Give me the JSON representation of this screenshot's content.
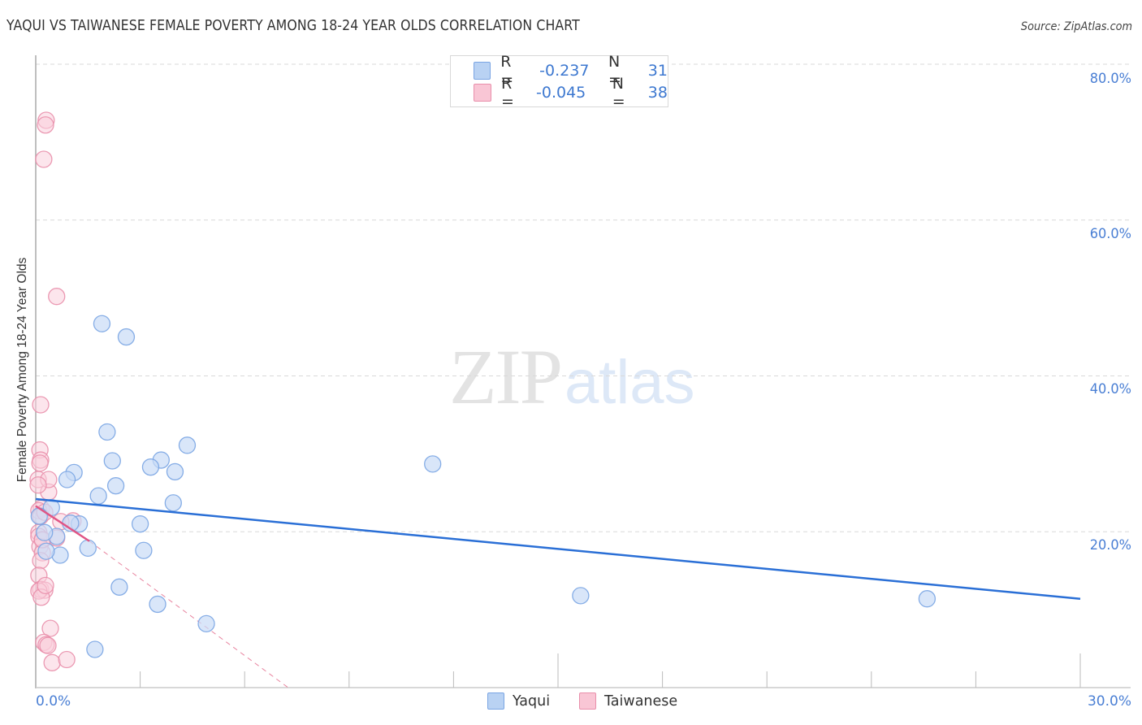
{
  "header": {
    "title": "YAQUI VS TAIWANESE FEMALE POVERTY AMONG 18-24 YEAR OLDS CORRELATION CHART",
    "source": "Source: ZipAtlas.com"
  },
  "watermark": {
    "zip": "ZIP",
    "atlas": "atlas"
  },
  "legend": {
    "rows": [
      {
        "r_label": "R =",
        "r_value": "-0.237",
        "n_label": "N =",
        "n_value": "31",
        "color": "#b9d2f3",
        "border": "#7aa5e3"
      },
      {
        "r_label": "R =",
        "r_value": "-0.045",
        "n_label": "N =",
        "n_value": "38",
        "color": "#f9c6d5",
        "border": "#e98fab"
      }
    ]
  },
  "bottom_legend": [
    {
      "label": "Yaqui",
      "color": "#b9d2f3",
      "border": "#7aa5e3"
    },
    {
      "label": "Taiwanese",
      "color": "#f9c6d5",
      "border": "#e98fab"
    }
  ],
  "axes": {
    "ylabel": "Female Poverty Among 18-24 Year Olds",
    "y_ticks": [
      "80.0%",
      "60.0%",
      "40.0%",
      "20.0%"
    ],
    "x_ticks": [
      "0.0%",
      "30.0%"
    ]
  },
  "chart_data": {
    "type": "scatter",
    "title": "YAQUI VS TAIWANESE FEMALE POVERTY AMONG 18-24 YEAR OLDS CORRELATION CHART",
    "xlabel": "",
    "ylabel": "Female Poverty Among 18-24 Year Olds",
    "xlim": [
      0,
      30
    ],
    "ylim": [
      0,
      80
    ],
    "x_tick_labels": [
      "0.0%",
      "30.0%"
    ],
    "y_tick_labels": [
      "20.0%",
      "40.0%",
      "60.0%",
      "80.0%"
    ],
    "grid": {
      "horizontal_dashed": true,
      "at": [
        20,
        40,
        60,
        80
      ]
    },
    "legend_position": "top-center and bottom-center",
    "series": [
      {
        "name": "Yaqui",
        "color": "#7aa5e3",
        "fill": "#c9dcf6",
        "R": -0.237,
        "N": 31,
        "points": [
          [
            1.9,
            46.7
          ],
          [
            2.6,
            45.0
          ],
          [
            2.05,
            32.8
          ],
          [
            4.35,
            31.1
          ],
          [
            2.2,
            29.1
          ],
          [
            3.6,
            29.2
          ],
          [
            3.3,
            28.3
          ],
          [
            11.4,
            28.7
          ],
          [
            1.1,
            27.6
          ],
          [
            4.0,
            27.7
          ],
          [
            0.9,
            26.7
          ],
          [
            2.3,
            25.9
          ],
          [
            1.8,
            24.6
          ],
          [
            3.95,
            23.7
          ],
          [
            0.45,
            23.1
          ],
          [
            1.25,
            21.0
          ],
          [
            3.0,
            21.0
          ],
          [
            1.0,
            21.1
          ],
          [
            0.6,
            19.4
          ],
          [
            1.5,
            17.9
          ],
          [
            3.1,
            17.6
          ],
          [
            0.7,
            17.0
          ],
          [
            0.3,
            17.5
          ],
          [
            2.4,
            12.9
          ],
          [
            3.5,
            10.7
          ],
          [
            15.65,
            11.8
          ],
          [
            4.9,
            8.2
          ],
          [
            25.6,
            11.4
          ],
          [
            1.7,
            4.9
          ],
          [
            0.1,
            22.0
          ],
          [
            0.25,
            19.9
          ]
        ],
        "trend": {
          "x": [
            0,
            30
          ],
          "y": [
            24.2,
            11.4
          ],
          "style": "solid"
        }
      },
      {
        "name": "Taiwanese",
        "color": "#e98fab",
        "fill": "#f9d0dc",
        "R": -0.045,
        "N": 38,
        "points": [
          [
            0.3,
            72.8
          ],
          [
            0.28,
            72.2
          ],
          [
            0.23,
            67.8
          ],
          [
            0.6,
            50.2
          ],
          [
            0.14,
            36.3
          ],
          [
            0.12,
            30.5
          ],
          [
            0.14,
            29.2
          ],
          [
            0.12,
            28.8
          ],
          [
            0.07,
            26.7
          ],
          [
            0.37,
            25.1
          ],
          [
            0.16,
            23.0
          ],
          [
            0.09,
            22.7
          ],
          [
            0.14,
            22.0
          ],
          [
            1.07,
            21.4
          ],
          [
            0.72,
            21.3
          ],
          [
            0.09,
            19.9
          ],
          [
            0.09,
            19.4
          ],
          [
            0.6,
            19.2
          ],
          [
            0.19,
            18.9
          ],
          [
            0.12,
            18.1
          ],
          [
            0.19,
            17.3
          ],
          [
            0.14,
            16.3
          ],
          [
            0.09,
            14.4
          ],
          [
            0.14,
            12.6
          ],
          [
            0.26,
            12.5
          ],
          [
            0.09,
            12.4
          ],
          [
            0.16,
            11.6
          ],
          [
            0.42,
            7.6
          ],
          [
            0.23,
            5.8
          ],
          [
            0.3,
            5.5
          ],
          [
            0.35,
            5.4
          ],
          [
            0.47,
            3.2
          ],
          [
            0.89,
            3.6
          ],
          [
            0.19,
            19.0
          ],
          [
            0.26,
            22.5
          ],
          [
            0.37,
            26.7
          ],
          [
            0.07,
            26.0
          ],
          [
            0.28,
            13.1
          ]
        ],
        "trend": {
          "x": [
            0,
            1.54
          ],
          "y": [
            23.3,
            18.8
          ],
          "style": "solid",
          "extension": {
            "x": [
              1.54,
              7.25
            ],
            "y": [
              18.8,
              0
            ],
            "style": "dashed"
          }
        }
      }
    ]
  }
}
